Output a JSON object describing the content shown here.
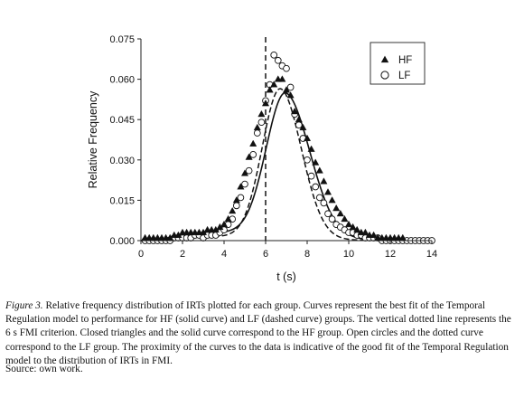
{
  "chart_data": {
    "type": "scatter",
    "xlabel": "t (s)",
    "ylabel": "Relative Frequency",
    "xlim": [
      0,
      14
    ],
    "ylim": [
      0,
      0.075
    ],
    "xticks": [
      0,
      2,
      4,
      6,
      8,
      10,
      12,
      14
    ],
    "yticks": [
      0.0,
      0.015,
      0.03,
      0.045,
      0.06,
      0.075
    ],
    "ytick_labels": [
      "0.000",
      "0.015",
      "0.030",
      "0.045",
      "0.060",
      "0.075"
    ],
    "vline_x": 6,
    "legend": [
      "HF",
      "LF"
    ],
    "legend_position": "top-right",
    "series": [
      {
        "name": "HF",
        "marker": "filled-triangle",
        "x": [
          0.2,
          0.4,
          0.6,
          0.8,
          1.0,
          1.2,
          1.4,
          1.6,
          1.8,
          2.0,
          2.2,
          2.4,
          2.6,
          2.8,
          3.0,
          3.2,
          3.4,
          3.6,
          3.8,
          4.0,
          4.2,
          4.4,
          4.6,
          4.8,
          5.0,
          5.2,
          5.4,
          5.6,
          5.8,
          6.0,
          6.2,
          6.4,
          6.6,
          6.8,
          7.0,
          7.2,
          7.4,
          7.6,
          7.8,
          8.0,
          8.2,
          8.4,
          8.6,
          8.8,
          9.0,
          9.2,
          9.4,
          9.6,
          9.8,
          10.0,
          10.2,
          10.4,
          10.6,
          10.8,
          11.0,
          11.2,
          11.4,
          11.6,
          11.8,
          12.0,
          12.2,
          12.4,
          12.6
        ],
        "y": [
          0.001,
          0.001,
          0.001,
          0.001,
          0.001,
          0.001,
          0.001,
          0.002,
          0.002,
          0.003,
          0.003,
          0.003,
          0.003,
          0.003,
          0.003,
          0.004,
          0.004,
          0.004,
          0.005,
          0.006,
          0.008,
          0.011,
          0.015,
          0.02,
          0.025,
          0.031,
          0.036,
          0.042,
          0.047,
          0.051,
          0.056,
          0.058,
          0.06,
          0.06,
          0.056,
          0.054,
          0.048,
          0.045,
          0.042,
          0.038,
          0.034,
          0.029,
          0.026,
          0.022,
          0.018,
          0.015,
          0.012,
          0.01,
          0.008,
          0.006,
          0.005,
          0.004,
          0.003,
          0.003,
          0.002,
          0.002,
          0.001,
          0.001,
          0.001,
          0.001,
          0.001,
          0.001,
          0.001
        ]
      },
      {
        "name": "LF",
        "marker": "open-circle",
        "x": [
          0.2,
          0.4,
          0.6,
          0.8,
          1.0,
          1.2,
          1.4,
          1.6,
          1.8,
          2.0,
          2.2,
          2.4,
          2.6,
          2.8,
          3.0,
          3.2,
          3.4,
          3.6,
          3.8,
          4.0,
          4.2,
          4.4,
          4.6,
          4.8,
          5.0,
          5.2,
          5.4,
          5.6,
          5.8,
          6.0,
          6.2,
          6.4,
          6.6,
          6.8,
          7.0,
          7.2,
          7.4,
          7.6,
          7.8,
          8.0,
          8.2,
          8.4,
          8.6,
          8.8,
          9.0,
          9.2,
          9.4,
          9.6,
          9.8,
          10.0,
          10.2,
          10.4,
          10.6,
          10.8,
          11.0,
          11.2,
          11.4,
          11.6,
          11.8,
          12.0,
          12.2,
          12.4,
          12.6,
          12.8,
          13.0,
          13.2,
          13.4,
          13.6,
          13.8,
          14.0
        ],
        "y": [
          0.0,
          0.0,
          0.0,
          0.0,
          0.0,
          0.0,
          0.0,
          0.001,
          0.001,
          0.001,
          0.001,
          0.001,
          0.002,
          0.002,
          0.001,
          0.002,
          0.002,
          0.002,
          0.003,
          0.004,
          0.006,
          0.008,
          0.013,
          0.016,
          0.021,
          0.026,
          0.032,
          0.04,
          0.044,
          0.052,
          0.058,
          0.069,
          0.067,
          0.065,
          0.064,
          0.057,
          0.047,
          0.043,
          0.038,
          0.03,
          0.024,
          0.02,
          0.016,
          0.014,
          0.01,
          0.008,
          0.006,
          0.005,
          0.004,
          0.003,
          0.003,
          0.002,
          0.002,
          0.001,
          0.001,
          0.001,
          0.001,
          0.0,
          0.0,
          0.0,
          0.0,
          0.0,
          0.0,
          0.0,
          0.0,
          0.0,
          0.0,
          0.0,
          0.0,
          0.0
        ]
      }
    ]
  },
  "caption": {
    "figure_label": "Figure 3.",
    "text": " Relative frequency distribution of IRTs plotted for each group. Curves represent the best fit of the Temporal Regulation model to performance for HF (solid curve) and LF (dashed curve) groups. The vertical dotted line represents the 6 s FMI criterion. Closed triangles and the solid curve correspond to the HF group. Open circles and the dotted curve correspond to the LF group. The proximity of the curves to the data is indicative of the good fit of the Temporal Regulation model to the distribution of IRTs in FMI."
  },
  "source": "Source: own work."
}
